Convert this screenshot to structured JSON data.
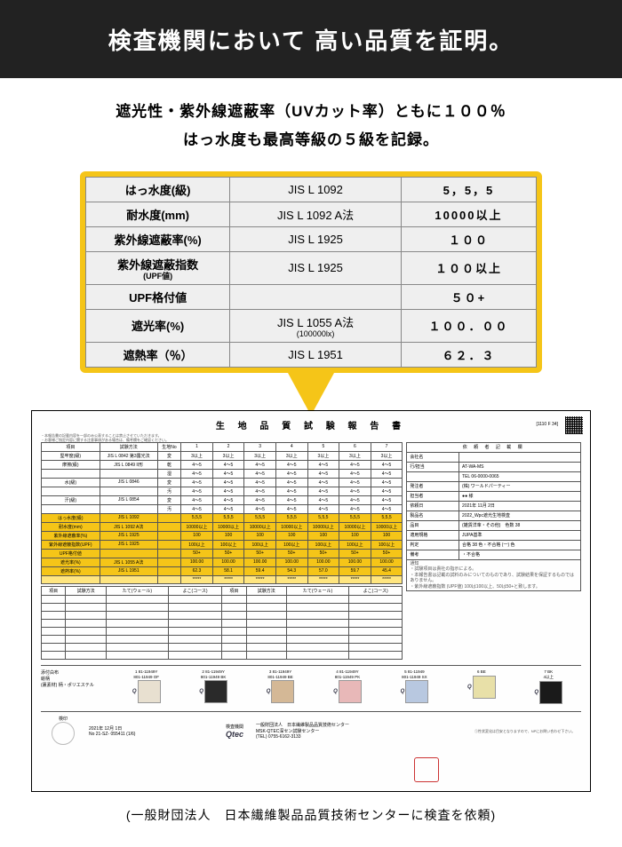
{
  "header": {
    "title": "検査機関において 高い品質を証明。"
  },
  "subhead": {
    "line1": "遮光性・紫外線遮蔽率（UVカット率）ともに１００％",
    "line2": "はっ水度も最高等級の５級を記録。"
  },
  "callout": {
    "rows": [
      {
        "label": "はっ水度(級)",
        "method": "JIS L 1092",
        "value": "5，5，5"
      },
      {
        "label": "耐水度(mm)",
        "method": "JIS L 1092 A法",
        "value": "10000以上"
      },
      {
        "label": "紫外線遮蔽率(%)",
        "method": "JIS L  1925",
        "value": "１００"
      },
      {
        "label": "紫外線遮蔽指数",
        "sublabel": "(UPF値)",
        "method": "JIS L  1925",
        "value": "１００以上"
      },
      {
        "label": "UPF格付値",
        "method": "",
        "value": "５０+"
      },
      {
        "label": "遮光率(%)",
        "method": "JIS L 1055 A法",
        "methodsub": "(100000lx)",
        "value": "１００．００"
      },
      {
        "label": "遮熱率（％）",
        "method": "JIS L 1951",
        "value": "６２．３"
      }
    ]
  },
  "doc": {
    "title": "生 地 品 質 試 験 報 告 書",
    "doc_no": "[1110 F 34]",
    "head_cols": [
      "項目",
      "試験方法",
      "生地No",
      "1",
      "2",
      "3",
      "4",
      "5",
      "6",
      "7"
    ],
    "rows_top": [
      {
        "c": [
          "堅牢度(級)",
          "JIS L 0842 第3露光法",
          "変",
          "3以上",
          "3以上",
          "3以上",
          "3以上",
          "3以上",
          "3以上",
          "3以上"
        ]
      },
      {
        "c": [
          "摩擦(級)",
          "JIS L 0849 II形",
          "乾",
          "4～5",
          "4～5",
          "4～5",
          "4～5",
          "4～5",
          "4～5",
          "4～5"
        ]
      },
      {
        "c": [
          "",
          "",
          "湿",
          "4～5",
          "4～5",
          "4～5",
          "4～5",
          "4～5",
          "4～5",
          "4～5"
        ]
      },
      {
        "c": [
          "水(級)",
          "JIS L 0846",
          "変",
          "4～5",
          "4～5",
          "4～5",
          "4～5",
          "4～5",
          "4～5",
          "4～5"
        ]
      },
      {
        "c": [
          "",
          "",
          "汚",
          "4～5",
          "4～5",
          "4～5",
          "4～5",
          "4～5",
          "4～5",
          "4～5"
        ]
      },
      {
        "c": [
          "汗(級)",
          "JIS L 0854",
          "変",
          "4～5",
          "4～5",
          "4～5",
          "4～5",
          "4～5",
          "4～5",
          "4～5"
        ]
      },
      {
        "c": [
          "",
          "",
          "汚",
          "4～5",
          "4～5",
          "4～5",
          "4～5",
          "4～5",
          "4～5",
          "4～5"
        ]
      }
    ],
    "rows_hl": [
      {
        "c": [
          "はっ水度(級)",
          "JIS L 1092",
          "",
          "5,5,5",
          "5,5,5",
          "5,5,5",
          "5,5,5",
          "5,5,5",
          "5,5,5",
          "5,5,5"
        ]
      },
      {
        "c": [
          "耐水度(mm)",
          "JIS L 1092 A法",
          "",
          "10000以上",
          "10000以上",
          "10000以上",
          "10000以上",
          "10000以上",
          "10000以上",
          "10000以上"
        ]
      },
      {
        "c": [
          "紫外線遮蔽率(%)",
          "JIS L 1925",
          "",
          "100",
          "100",
          "100",
          "100",
          "100",
          "100",
          "100"
        ]
      },
      {
        "c": [
          "紫外線遮蔽指数(UPF)",
          "JIS L 1925",
          "",
          "100以上",
          "100以上",
          "100以上",
          "100以上",
          "100以上",
          "100以上",
          "100以上"
        ]
      },
      {
        "c": [
          "UPF格付値",
          "",
          "",
          "50+",
          "50+",
          "50+",
          "50+",
          "50+",
          "50+",
          "50+"
        ]
      },
      {
        "c": [
          "遮光率(%)",
          "JIS L 1055 A法",
          "",
          "100.00",
          "100.00",
          "100.00",
          "100.00",
          "100.00",
          "100.00",
          "100.00"
        ]
      },
      {
        "c": [
          "遮熱率(%)",
          "JIS L 1951",
          "",
          "62.3",
          "58.1",
          "59.4",
          "54.3",
          "57.0",
          "59.7",
          "45.4"
        ]
      }
    ],
    "rows_pct": [
      {
        "c": [
          "",
          "",
          "",
          "*****",
          "*****",
          "*****",
          "*****",
          "*****",
          "*****",
          "*****"
        ]
      }
    ],
    "mid_head": [
      "項目",
      "試験方法",
      "たて(ウェール)",
      "よこ(コース)",
      "項目",
      "試験方法",
      "たて(ウェール)",
      "よこ(コース)"
    ],
    "right": {
      "box_title": "依 頼 者 記 載 欄",
      "company_label": "会社名",
      "company_val": "",
      "dept_label": "行/担当",
      "dept_val": "AT-WA-MS",
      "tel_label": "TEL",
      "tel_val": "06-0000-0065",
      "order_label": "発注者",
      "order_val": "(株) ワールドパーティー",
      "charge_label": "担当者",
      "charge_val": "●●  様",
      "date_label": "依頼日",
      "date_val": "2021年 11月 2日",
      "prod_label": "製品名",
      "prod_val": "2022_Wpc遮光生地検査",
      "item_label": "品目",
      "item_val": "(雑貨洋傘・その他)",
      "color_label": "色数",
      "color_val": "38",
      "std_label": "適用規格",
      "std_val": "JUPA基準",
      "judge_label": "判定",
      "judge_val": "合格 38 色・不合格 (一) 色",
      "remark_label": "備考",
      "remark_val": "・不合格",
      "notes": [
        "通知",
        "・試験項目は貴社の指示による。",
        "・本報告書は記載の試料のみについてのものであり、試験結果を保証するものではありません。",
        "・紫外線遮蔽指数 (UPF値) 100は100以上、50は50+と致します。"
      ]
    },
    "swatches": {
      "header": [
        "添付白布",
        "絵柄",
        "(裏素材) 柄・ポリエステル"
      ],
      "items": [
        {
          "no": "1 81-11949Y",
          "code": "801-11949 OF",
          "color": "#e8e0d0"
        },
        {
          "no": "2 81-11949Y",
          "code": "801-11949 BK",
          "color": "#2a2a2a"
        },
        {
          "no": "3 81-11949Y",
          "code": "801-11949 BE",
          "color": "#d4b896"
        },
        {
          "no": "4 81-11949Y",
          "code": "801-11949 PK",
          "color": "#e8b8b8"
        },
        {
          "no": "5 81-11949",
          "code": "801-11949 SX",
          "color": "#b8c8e0"
        },
        {
          "no": "6 BE",
          "code": "",
          "color": "#e8e0a8"
        },
        {
          "no": "7 BK",
          "code": "4以上",
          "color": "#1a1a1a"
        }
      ]
    },
    "footer": {
      "approve_label": "検印",
      "date": "2021年 12月 1日",
      "report_no": "No 21-SZ- 055411   (1/6)",
      "inst_label": "検査機関",
      "inst": "一般財団法人　日本繊維製品品質技術センター",
      "inst2": "MSK-QTEC深セン試験センター",
      "tel": "(TEL)  0755-6162-3133",
      "note": "①性状変化は目安となりますので、NPにお問い合わせ下さい。"
    }
  },
  "footnote": "(一般財団法人　日本繊維製品品質技術センターに検査を依頼)",
  "colors": {
    "accent": "#f5c518",
    "black": "#222"
  }
}
